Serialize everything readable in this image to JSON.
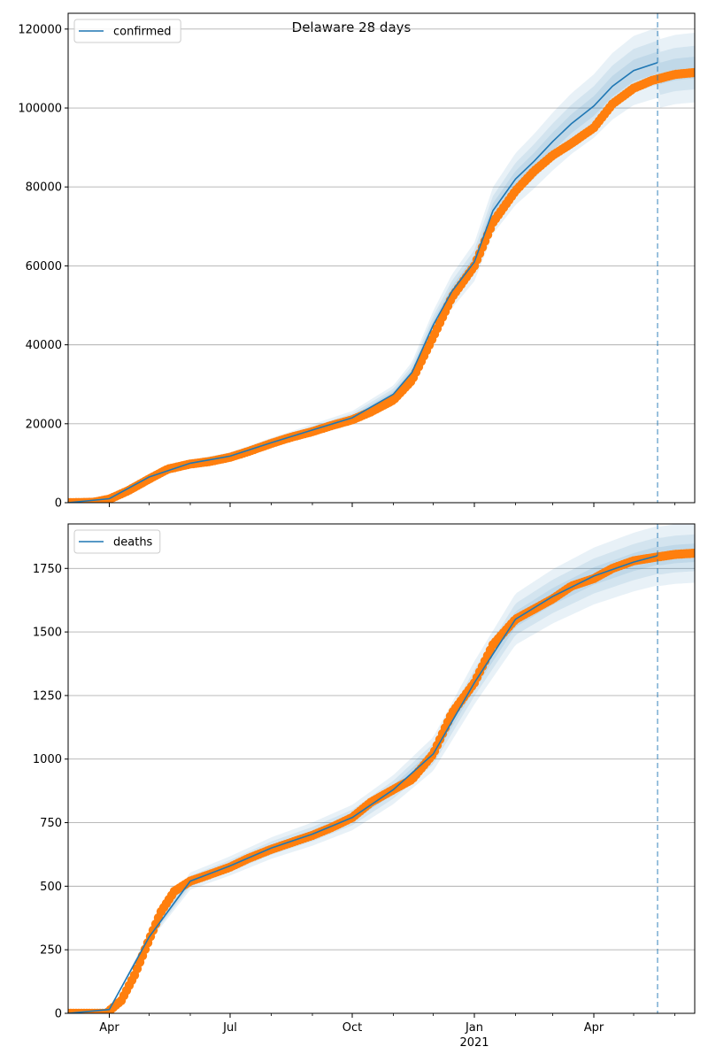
{
  "figure_title": "Delaware 28 days",
  "colors": {
    "model": "#1f77b4",
    "observed": "#ff7f0e",
    "band": "#1f77b4",
    "grid": "#b0b0b0"
  },
  "x_axis": {
    "range": [
      "2020-03-01",
      "2021-06-16"
    ],
    "major_ticks": [
      {
        "date": "2020-04-01",
        "label": "Apr"
      },
      {
        "date": "2020-07-01",
        "label": "Jul"
      },
      {
        "date": "2020-10-01",
        "label": "Oct"
      },
      {
        "date": "2021-01-01",
        "label": "Jan"
      },
      {
        "date": "2021-04-01",
        "label": "Apr"
      }
    ],
    "year_label": "2021",
    "minor_tick_dates": [
      "2020-05-01",
      "2020-06-01",
      "2020-08-01",
      "2020-09-01",
      "2020-11-01",
      "2020-12-01",
      "2021-02-01",
      "2021-03-01",
      "2021-05-01",
      "2021-06-01"
    ],
    "forecast_start": "2021-05-19"
  },
  "chart_data": [
    {
      "type": "line",
      "legend": "confirmed",
      "title": "Delaware 28 days",
      "ylim": [
        0,
        124000
      ],
      "yticks": [
        0,
        20000,
        40000,
        60000,
        80000,
        100000,
        120000
      ],
      "grid": "horizontal",
      "legend_position": "top-left",
      "observed": [
        [
          "2020-03-01",
          0
        ],
        [
          "2020-03-20",
          100
        ],
        [
          "2020-04-01",
          900
        ],
        [
          "2020-04-15",
          3000
        ],
        [
          "2020-05-01",
          6000
        ],
        [
          "2020-05-15",
          8500
        ],
        [
          "2020-06-01",
          9800
        ],
        [
          "2020-06-15",
          10400
        ],
        [
          "2020-07-01",
          11500
        ],
        [
          "2020-07-15",
          13000
        ],
        [
          "2020-08-01",
          15000
        ],
        [
          "2020-08-15",
          16500
        ],
        [
          "2020-09-01",
          18000
        ],
        [
          "2020-09-15",
          19500
        ],
        [
          "2020-10-01",
          21000
        ],
        [
          "2020-10-15",
          23000
        ],
        [
          "2020-11-01",
          26000
        ],
        [
          "2020-11-15",
          31000
        ],
        [
          "2020-12-01",
          42000
        ],
        [
          "2020-12-15",
          52000
        ],
        [
          "2021-01-01",
          60000
        ],
        [
          "2021-01-15",
          71000
        ],
        [
          "2021-02-01",
          79000
        ],
        [
          "2021-02-15",
          84000
        ],
        [
          "2021-03-01",
          88000
        ],
        [
          "2021-03-15",
          91000
        ],
        [
          "2021-04-01",
          95000
        ],
        [
          "2021-04-15",
          101000
        ],
        [
          "2021-05-01",
          105000
        ],
        [
          "2021-05-15",
          107000
        ],
        [
          "2021-06-01",
          108500
        ],
        [
          "2021-06-16",
          109000
        ]
      ],
      "model": [
        [
          "2020-03-01",
          0
        ],
        [
          "2020-04-01",
          1000
        ],
        [
          "2020-05-01",
          6500
        ],
        [
          "2020-06-01",
          10000
        ],
        [
          "2020-07-01",
          11800
        ],
        [
          "2020-08-01",
          15200
        ],
        [
          "2020-09-01",
          18400
        ],
        [
          "2020-10-01",
          21500
        ],
        [
          "2020-11-01",
          27500
        ],
        [
          "2020-11-15",
          33000
        ],
        [
          "2020-12-01",
          45000
        ],
        [
          "2020-12-15",
          53500
        ],
        [
          "2021-01-01",
          61000
        ],
        [
          "2021-01-15",
          74000
        ],
        [
          "2021-02-01",
          82000
        ],
        [
          "2021-02-15",
          86500
        ],
        [
          "2021-03-01",
          91500
        ],
        [
          "2021-03-15",
          96000
        ],
        [
          "2021-04-01",
          100500
        ],
        [
          "2021-04-15",
          105500
        ],
        [
          "2021-05-01",
          109500
        ],
        [
          "2021-05-19",
          111500
        ]
      ],
      "band_widths": [
        0.08,
        0.05,
        0.025
      ]
    },
    {
      "type": "line",
      "legend": "deaths",
      "ylim": [
        0,
        1925
      ],
      "yticks": [
        0,
        250,
        500,
        750,
        1000,
        1250,
        1500,
        1750
      ],
      "grid": "horizontal",
      "legend_position": "top-left",
      "observed": [
        [
          "2020-03-01",
          0
        ],
        [
          "2020-03-30",
          0
        ],
        [
          "2020-04-01",
          10
        ],
        [
          "2020-04-10",
          50
        ],
        [
          "2020-04-20",
          150
        ],
        [
          "2020-05-01",
          290
        ],
        [
          "2020-05-10",
          400
        ],
        [
          "2020-05-20",
          480
        ],
        [
          "2020-06-01",
          520
        ],
        [
          "2020-06-15",
          545
        ],
        [
          "2020-07-01",
          575
        ],
        [
          "2020-07-15",
          610
        ],
        [
          "2020-08-01",
          645
        ],
        [
          "2020-08-15",
          670
        ],
        [
          "2020-09-01",
          700
        ],
        [
          "2020-09-15",
          730
        ],
        [
          "2020-10-01",
          770
        ],
        [
          "2020-10-15",
          830
        ],
        [
          "2020-11-01",
          880
        ],
        [
          "2020-11-15",
          920
        ],
        [
          "2020-12-01",
          1020
        ],
        [
          "2020-12-15",
          1180
        ],
        [
          "2021-01-01",
          1300
        ],
        [
          "2021-01-15",
          1450
        ],
        [
          "2021-02-01",
          1550
        ],
        [
          "2021-02-15",
          1590
        ],
        [
          "2021-03-01",
          1630
        ],
        [
          "2021-03-15",
          1680
        ],
        [
          "2021-04-01",
          1710
        ],
        [
          "2021-04-15",
          1750
        ],
        [
          "2021-05-01",
          1780
        ],
        [
          "2021-05-19",
          1795
        ],
        [
          "2021-06-01",
          1805
        ],
        [
          "2021-06-16",
          1810
        ]
      ],
      "model": [
        [
          "2020-03-01",
          0
        ],
        [
          "2020-04-01",
          15
        ],
        [
          "2020-05-01",
          300
        ],
        [
          "2020-06-01",
          520
        ],
        [
          "2020-07-01",
          580
        ],
        [
          "2020-08-01",
          650
        ],
        [
          "2020-09-01",
          705
        ],
        [
          "2020-10-01",
          770
        ],
        [
          "2020-11-01",
          880
        ],
        [
          "2020-12-01",
          1020
        ],
        [
          "2021-01-01",
          1300
        ],
        [
          "2021-02-01",
          1550
        ],
        [
          "2021-03-01",
          1640
        ],
        [
          "2021-04-01",
          1720
        ],
        [
          "2021-05-01",
          1775
        ],
        [
          "2021-05-19",
          1800
        ]
      ],
      "band_widths": [
        0.065,
        0.04,
        0.02
      ]
    }
  ]
}
